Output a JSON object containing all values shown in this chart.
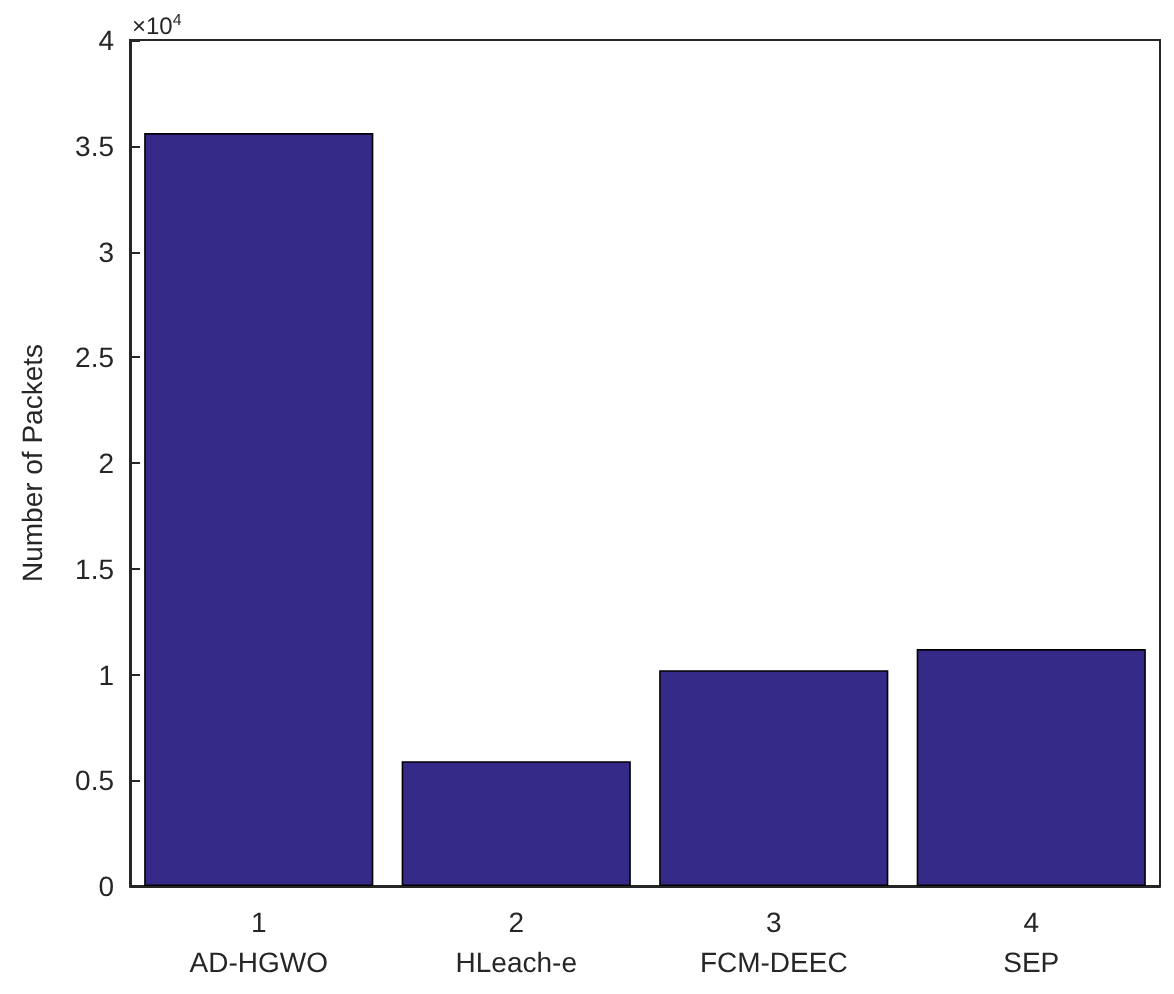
{
  "chart_data": {
    "type": "bar",
    "ylabel": "Number of Packets",
    "categories": [
      "1\nAD-HGWO",
      "2\nHLeach-e",
      "3\nFCM-DEEC",
      "4\nSEP"
    ],
    "values": [
      3.56,
      0.59,
      1.02,
      1.12
    ],
    "color": "#352a87",
    "ylim": [
      0,
      4
    ],
    "yticks": [
      0,
      0.5,
      1,
      1.5,
      2,
      2.5,
      3,
      3.5,
      4
    ],
    "annotations": [
      "×10$^{4}$"
    ],
    "grid": false
  }
}
